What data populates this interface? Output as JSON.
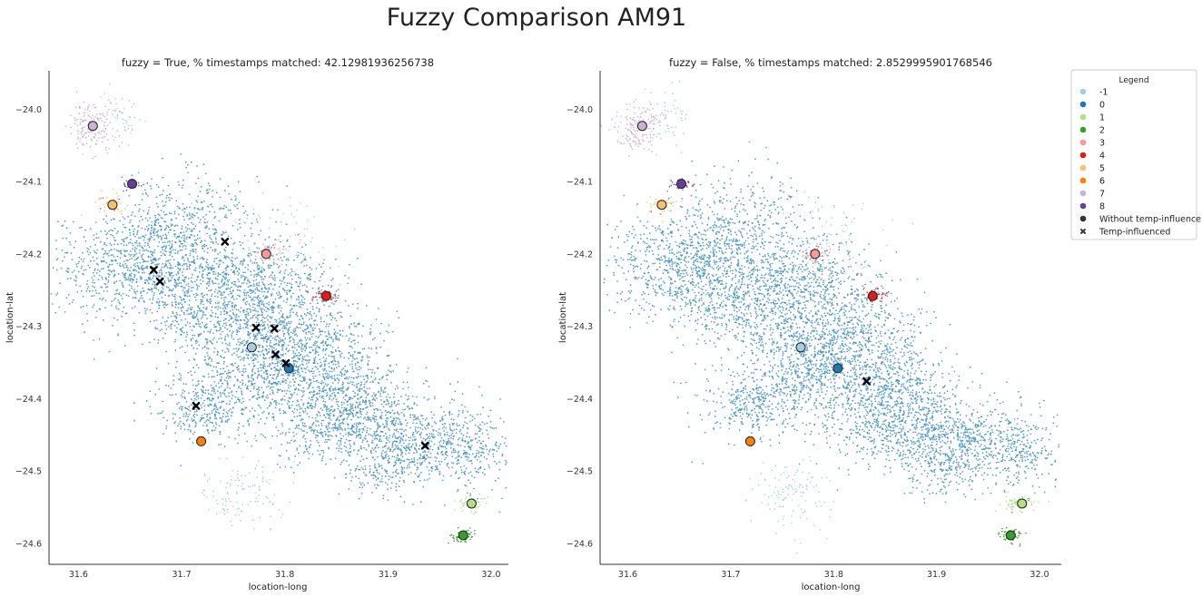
{
  "figure": {
    "title": "Fuzzy Comparison AM91"
  },
  "colors": {
    "-1": "#a6cee3",
    "0": "#1f78b4",
    "1": "#b2df8a",
    "2": "#33a02c",
    "3": "#fb9a99",
    "4": "#e31a1c",
    "5": "#fdbf6f",
    "6": "#ff7f00",
    "7": "#cab2d6",
    "8": "#6a3d9a"
  },
  "legend": {
    "title": "Legend",
    "items": [
      {
        "label": "-1",
        "color": "#a6cee3",
        "marker": "circle"
      },
      {
        "label": "0",
        "color": "#1f78b4",
        "marker": "circle"
      },
      {
        "label": "1",
        "color": "#b2df8a",
        "marker": "circle"
      },
      {
        "label": "2",
        "color": "#33a02c",
        "marker": "circle"
      },
      {
        "label": "3",
        "color": "#fb9a99",
        "marker": "circle"
      },
      {
        "label": "4",
        "color": "#e31a1c",
        "marker": "circle"
      },
      {
        "label": "5",
        "color": "#fdbf6f",
        "marker": "circle"
      },
      {
        "label": "6",
        "color": "#ff7f00",
        "marker": "circle"
      },
      {
        "label": "7",
        "color": "#cab2d6",
        "marker": "circle"
      },
      {
        "label": "8",
        "color": "#6a3d9a",
        "marker": "circle"
      },
      {
        "label": "Without temp-influence",
        "color": "#333333",
        "marker": "circle"
      },
      {
        "label": "Temp-influenced",
        "color": "#333333",
        "marker": "x"
      }
    ]
  },
  "chart_data": [
    {
      "type": "scatter",
      "title": "fuzzy = True, % timestamps matched: 42.12981936256738",
      "xlabel": "location-long",
      "ylabel": "location-lat",
      "xlim": [
        31.57,
        32.03
      ],
      "ylim": [
        -24.63,
        -23.95
      ],
      "xticks": [
        "31.6",
        "31.7",
        "31.8",
        "31.9",
        "32.0"
      ],
      "yticks": [
        "−24.0",
        "−24.1",
        "−24.2",
        "−24.3",
        "−24.4",
        "−24.5",
        "−24.6"
      ],
      "centroids": [
        {
          "cluster": "-1",
          "x": 31.768,
          "y": -24.329
        },
        {
          "cluster": "0",
          "x": 31.804,
          "y": -24.358
        },
        {
          "cluster": "1",
          "x": 31.981,
          "y": -24.545
        },
        {
          "cluster": "2",
          "x": 31.973,
          "y": -24.589
        },
        {
          "cluster": "3",
          "x": 31.782,
          "y": -24.2
        },
        {
          "cluster": "4",
          "x": 31.84,
          "y": -24.258
        },
        {
          "cluster": "5",
          "x": 31.633,
          "y": -24.132
        },
        {
          "cluster": "6",
          "x": 31.719,
          "y": -24.459
        },
        {
          "cluster": "7",
          "x": 31.614,
          "y": -24.023
        },
        {
          "cluster": "8",
          "x": 31.652,
          "y": -24.103
        }
      ],
      "temp_influenced": [
        {
          "x": 31.742,
          "y": -24.183
        },
        {
          "x": 31.673,
          "y": -24.222
        },
        {
          "x": 31.679,
          "y": -24.238
        },
        {
          "x": 31.772,
          "y": -24.302
        },
        {
          "x": 31.79,
          "y": -24.303
        },
        {
          "x": 31.791,
          "y": -24.339
        },
        {
          "x": 31.801,
          "y": -24.351
        },
        {
          "x": 31.714,
          "y": -24.41
        },
        {
          "x": 31.936,
          "y": -24.465
        }
      ]
    },
    {
      "type": "scatter",
      "title": "fuzzy = False, % timestamps matched: 2.8529995901768546",
      "xlabel": "location-long",
      "ylabel": "location-lat",
      "xlim": [
        31.57,
        32.03
      ],
      "ylim": [
        -24.63,
        -23.95
      ],
      "xticks": [
        "31.6",
        "31.7",
        "31.8",
        "31.9",
        "32.0"
      ],
      "yticks": [
        "−24.0",
        "−24.1",
        "−24.2",
        "−24.3",
        "−24.4",
        "−24.5",
        "−24.6"
      ],
      "centroids": [
        {
          "cluster": "-1",
          "x": 31.768,
          "y": -24.329
        },
        {
          "cluster": "0",
          "x": 31.804,
          "y": -24.358
        },
        {
          "cluster": "1",
          "x": 31.983,
          "y": -24.545
        },
        {
          "cluster": "2",
          "x": 31.972,
          "y": -24.589
        },
        {
          "cluster": "3",
          "x": 31.782,
          "y": -24.2
        },
        {
          "cluster": "4",
          "x": 31.838,
          "y": -24.258
        },
        {
          "cluster": "5",
          "x": 31.633,
          "y": -24.132
        },
        {
          "cluster": "6",
          "x": 31.719,
          "y": -24.459
        },
        {
          "cluster": "7",
          "x": 31.614,
          "y": -24.023
        },
        {
          "cluster": "8",
          "x": 31.652,
          "y": -24.103
        }
      ],
      "temp_influenced": [
        {
          "x": 31.832,
          "y": -24.376
        }
      ]
    }
  ]
}
